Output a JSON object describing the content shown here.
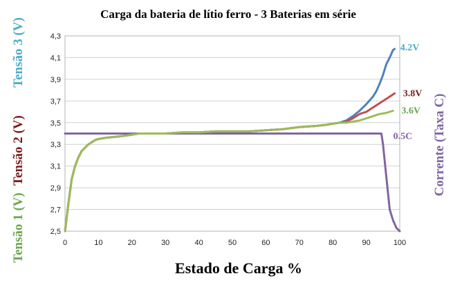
{
  "chart_data": {
    "type": "line",
    "title": "Carga da bateria de lítio ferro - 3 Baterias em série",
    "xlabel": "Estado de Carga %",
    "y_axis_labels": [
      {
        "text": "Tensão 3 (V)",
        "color": "#4bacc6"
      },
      {
        "text": "Tensão 2 (V)",
        "color": "#7b1c1c"
      },
      {
        "text": "Tensão 1 (V)",
        "color": "#6aa84f"
      }
    ],
    "right_axis_label": {
      "text": "Corrente (Taxa C)",
      "color": "#8064a2"
    },
    "xlim": [
      0,
      100
    ],
    "ylim": [
      2.5,
      4.3
    ],
    "x_ticks": [
      "0",
      "10",
      "20",
      "30",
      "40",
      "50",
      "60",
      "70",
      "80",
      "90",
      "100"
    ],
    "y_ticks": [
      "2,5",
      "2,7",
      "2,9",
      "3,1",
      "3,3",
      "3,5",
      "3,7",
      "3,9",
      "4,1",
      "4,3"
    ],
    "grid": "horizontal",
    "series": [
      {
        "name": "4.2V",
        "color": "#4f81bd",
        "label_color": "#4bacc6",
        "points": [
          [
            0,
            2.5
          ],
          [
            1,
            2.75
          ],
          [
            2,
            2.98
          ],
          [
            3,
            3.1
          ],
          [
            4,
            3.18
          ],
          [
            5,
            3.24
          ],
          [
            6,
            3.27
          ],
          [
            7,
            3.3
          ],
          [
            8,
            3.32
          ],
          [
            9,
            3.34
          ],
          [
            10,
            3.35
          ],
          [
            12,
            3.36
          ],
          [
            15,
            3.37
          ],
          [
            18,
            3.38
          ],
          [
            20,
            3.39
          ],
          [
            22,
            3.4
          ],
          [
            25,
            3.4
          ],
          [
            30,
            3.4
          ],
          [
            35,
            3.41
          ],
          [
            40,
            3.41
          ],
          [
            45,
            3.42
          ],
          [
            50,
            3.42
          ],
          [
            55,
            3.42
          ],
          [
            60,
            3.43
          ],
          [
            65,
            3.44
          ],
          [
            70,
            3.46
          ],
          [
            75,
            3.47
          ],
          [
            78,
            3.48
          ],
          [
            80,
            3.49
          ],
          [
            82,
            3.5
          ],
          [
            84,
            3.52
          ],
          [
            86,
            3.56
          ],
          [
            88,
            3.61
          ],
          [
            90,
            3.67
          ],
          [
            92,
            3.74
          ],
          [
            93,
            3.79
          ],
          [
            94,
            3.86
          ],
          [
            95,
            3.94
          ],
          [
            96,
            4.04
          ],
          [
            97,
            4.1
          ],
          [
            98,
            4.17
          ],
          [
            98.5,
            4.18
          ]
        ]
      },
      {
        "name": "3.8V",
        "color": "#c0504d",
        "label_color": "#7b1c1c",
        "points": [
          [
            0,
            2.5
          ],
          [
            1,
            2.75
          ],
          [
            2,
            2.98
          ],
          [
            3,
            3.1
          ],
          [
            4,
            3.18
          ],
          [
            5,
            3.24
          ],
          [
            6,
            3.27
          ],
          [
            7,
            3.3
          ],
          [
            8,
            3.32
          ],
          [
            9,
            3.34
          ],
          [
            10,
            3.35
          ],
          [
            12,
            3.36
          ],
          [
            15,
            3.37
          ],
          [
            18,
            3.38
          ],
          [
            20,
            3.39
          ],
          [
            22,
            3.4
          ],
          [
            25,
            3.4
          ],
          [
            30,
            3.4
          ],
          [
            35,
            3.41
          ],
          [
            40,
            3.41
          ],
          [
            45,
            3.42
          ],
          [
            50,
            3.42
          ],
          [
            55,
            3.42
          ],
          [
            60,
            3.43
          ],
          [
            65,
            3.44
          ],
          [
            70,
            3.46
          ],
          [
            75,
            3.47
          ],
          [
            78,
            3.48
          ],
          [
            80,
            3.49
          ],
          [
            82,
            3.5
          ],
          [
            84,
            3.51
          ],
          [
            86,
            3.54
          ],
          [
            88,
            3.58
          ],
          [
            90,
            3.6
          ],
          [
            92,
            3.64
          ],
          [
            94,
            3.68
          ],
          [
            96,
            3.72
          ],
          [
            98.5,
            3.77
          ]
        ]
      },
      {
        "name": "3.6V",
        "color": "#9bbb59",
        "label_color": "#6aa84f",
        "points": [
          [
            0,
            2.5
          ],
          [
            1,
            2.75
          ],
          [
            2,
            2.98
          ],
          [
            3,
            3.1
          ],
          [
            4,
            3.18
          ],
          [
            5,
            3.24
          ],
          [
            6,
            3.27
          ],
          [
            7,
            3.3
          ],
          [
            8,
            3.32
          ],
          [
            9,
            3.34
          ],
          [
            10,
            3.35
          ],
          [
            12,
            3.36
          ],
          [
            15,
            3.37
          ],
          [
            18,
            3.38
          ],
          [
            20,
            3.39
          ],
          [
            22,
            3.4
          ],
          [
            25,
            3.4
          ],
          [
            30,
            3.4
          ],
          [
            35,
            3.41
          ],
          [
            40,
            3.41
          ],
          [
            45,
            3.42
          ],
          [
            50,
            3.42
          ],
          [
            55,
            3.42
          ],
          [
            60,
            3.43
          ],
          [
            65,
            3.44
          ],
          [
            70,
            3.46
          ],
          [
            75,
            3.47
          ],
          [
            78,
            3.48
          ],
          [
            80,
            3.49
          ],
          [
            82,
            3.5
          ],
          [
            84,
            3.5
          ],
          [
            86,
            3.51
          ],
          [
            88,
            3.52
          ],
          [
            90,
            3.54
          ],
          [
            92,
            3.56
          ],
          [
            94,
            3.58
          ],
          [
            96,
            3.59
          ],
          [
            98,
            3.61
          ]
        ]
      },
      {
        "name": "0.5C",
        "color": "#8064a2",
        "label_color": "#8064a2",
        "points": [
          [
            0,
            3.4
          ],
          [
            20,
            3.4
          ],
          [
            40,
            3.4
          ],
          [
            60,
            3.4
          ],
          [
            80,
            3.4
          ],
          [
            94.5,
            3.4
          ],
          [
            95,
            3.3
          ],
          [
            96,
            3.0
          ],
          [
            97,
            2.7
          ],
          [
            98,
            2.6
          ],
          [
            99,
            2.53
          ],
          [
            100,
            2.5
          ]
        ]
      }
    ]
  }
}
